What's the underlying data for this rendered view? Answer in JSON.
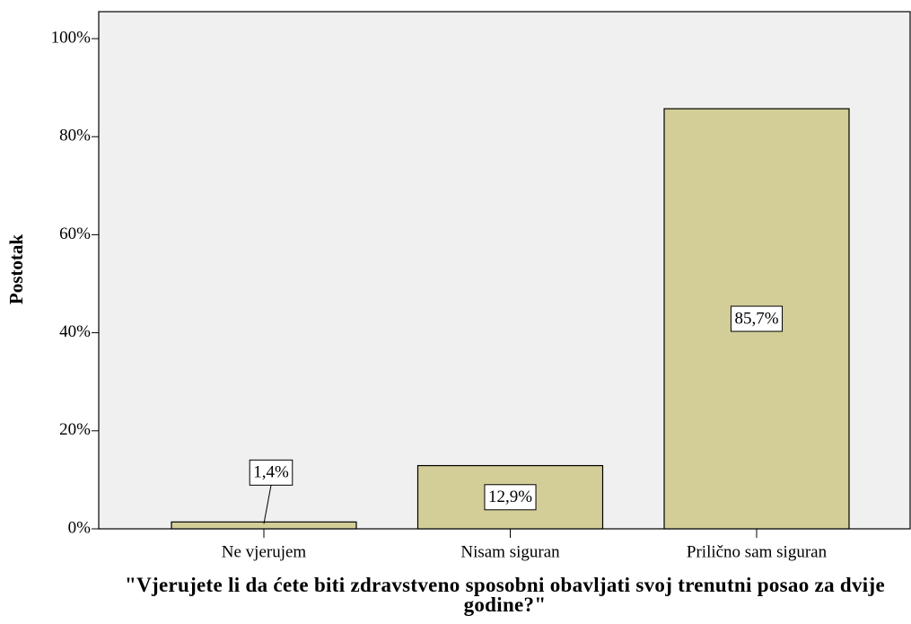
{
  "chart_data": {
    "type": "bar",
    "title": "\"Vjerujete li da ćete biti zdravstveno sposobni obavljati svoj trenutni posao za dvije godine?\"",
    "ylabel": "Postotak",
    "categories": [
      "Ne vjerujem",
      "Nisam siguran",
      "Prilično sam siguran"
    ],
    "values": [
      1.4,
      12.9,
      85.7
    ],
    "value_labels": [
      "1,4%",
      "12,9%",
      "85,7%"
    ],
    "color": "#d3ce97",
    "ylim": [
      0,
      105.5
    ],
    "yticks": [
      {
        "value": 0,
        "label": "0%"
      },
      {
        "value": 20,
        "label": "20%"
      },
      {
        "value": 40,
        "label": "40%"
      },
      {
        "value": 60,
        "label": "60%"
      },
      {
        "value": 80,
        "label": "80%"
      },
      {
        "value": 100,
        "label": "100%"
      }
    ]
  }
}
